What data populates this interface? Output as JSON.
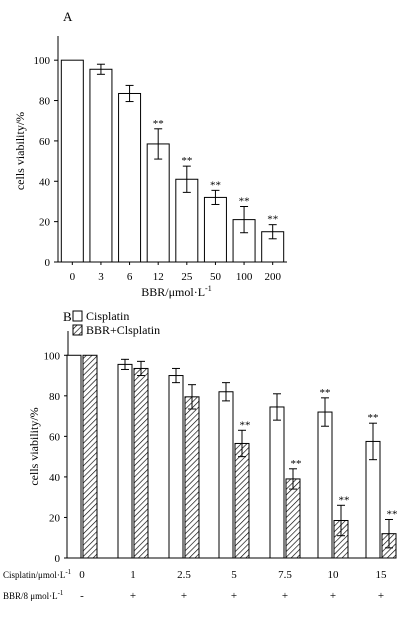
{
  "chart_data": [
    {
      "type": "bar",
      "panel_label": "A",
      "categories": [
        "0",
        "3",
        "6",
        "12",
        "25",
        "50",
        "100",
        "200"
      ],
      "values": [
        100,
        95.5,
        83.5,
        58.5,
        41,
        32,
        21,
        15
      ],
      "errors": [
        0,
        2.5,
        4,
        7.5,
        6.5,
        3.5,
        6.5,
        3.5
      ],
      "significance": [
        "",
        "",
        "",
        "**",
        "**",
        "**",
        "**",
        "**"
      ],
      "xlabel": "BBR/μmol·L",
      "xlabel_sup": "-1",
      "ylabel": "cells viability/%",
      "yticks": [
        "0",
        "20",
        "40",
        "60",
        "80",
        "100"
      ],
      "ylim": [
        0,
        110
      ],
      "grid": false
    },
    {
      "type": "bar",
      "panel_label": "B",
      "categories": [
        "0",
        "1",
        "2.5",
        "5",
        "7.5",
        "10",
        "15"
      ],
      "series": [
        {
          "name": "Cisplatin",
          "pattern": "open",
          "values": [
            100,
            95.5,
            90,
            82,
            74.5,
            72,
            57.5
          ],
          "errors": [
            0,
            2.5,
            3.5,
            4.5,
            6.5,
            7,
            9
          ],
          "significance": [
            "",
            "",
            "",
            "",
            "",
            "**",
            "**"
          ]
        },
        {
          "name": "BBR+Clsplatin",
          "pattern": "hatched",
          "values": [
            100,
            93.5,
            79.5,
            56.5,
            39,
            18.5,
            12
          ],
          "errors": [
            0,
            3.5,
            6,
            6.5,
            5,
            7.5,
            7
          ],
          "significance": [
            "",
            "",
            "",
            "**",
            "**",
            "**",
            "**"
          ]
        }
      ],
      "ylabel": "cells viability/%",
      "yticks": [
        "0",
        "20",
        "40",
        "60",
        "80",
        "100"
      ],
      "ylim": [
        0,
        110
      ],
      "row1_label": "Cisplatin/μmol·L",
      "row1_label_sup": "-1",
      "row2_label": "BBR/8 μmol·L",
      "row2_label_sup": "-1",
      "bbr_marks": [
        "-",
        "+",
        "+",
        "+",
        "+",
        "+",
        "+"
      ],
      "legend_position": "top-left",
      "grid": false
    }
  ]
}
